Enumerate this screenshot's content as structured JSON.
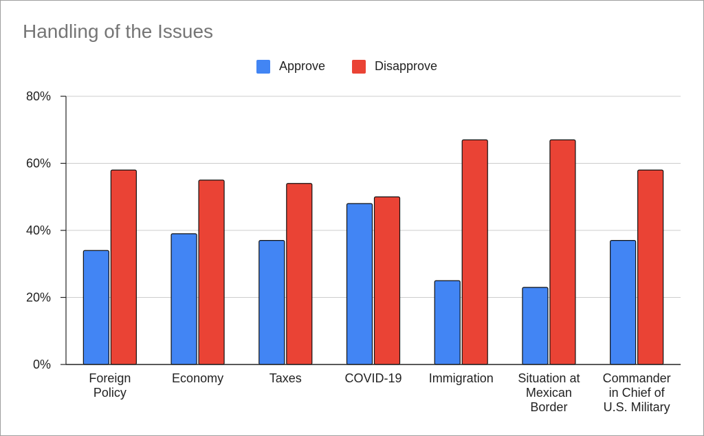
{
  "chart_data": {
    "type": "bar",
    "title": "Handling of the Issues",
    "categories": [
      [
        "Foreign",
        "Policy"
      ],
      [
        "Economy"
      ],
      [
        "Taxes"
      ],
      [
        "COVID-19"
      ],
      [
        "Immigration"
      ],
      [
        "Situation at",
        "Mexican",
        "Border"
      ],
      [
        "Commander",
        "in Chief of",
        "U.S. Military"
      ]
    ],
    "series": [
      {
        "name": "Approve",
        "color": "#4285f4",
        "values": [
          34,
          39,
          37,
          48,
          25,
          23,
          37
        ]
      },
      {
        "name": "Disapprove",
        "color": "#ea4335",
        "values": [
          58,
          55,
          54,
          50,
          67,
          67,
          58
        ]
      }
    ],
    "ylim": [
      0,
      80
    ],
    "yticks": [
      "0%",
      "20%",
      "40%",
      "60%",
      "80%"
    ],
    "ytick_values": [
      0,
      20,
      40,
      60,
      80
    ],
    "grid": true,
    "legend_position": "top-center",
    "xlabel": "",
    "ylabel": ""
  }
}
